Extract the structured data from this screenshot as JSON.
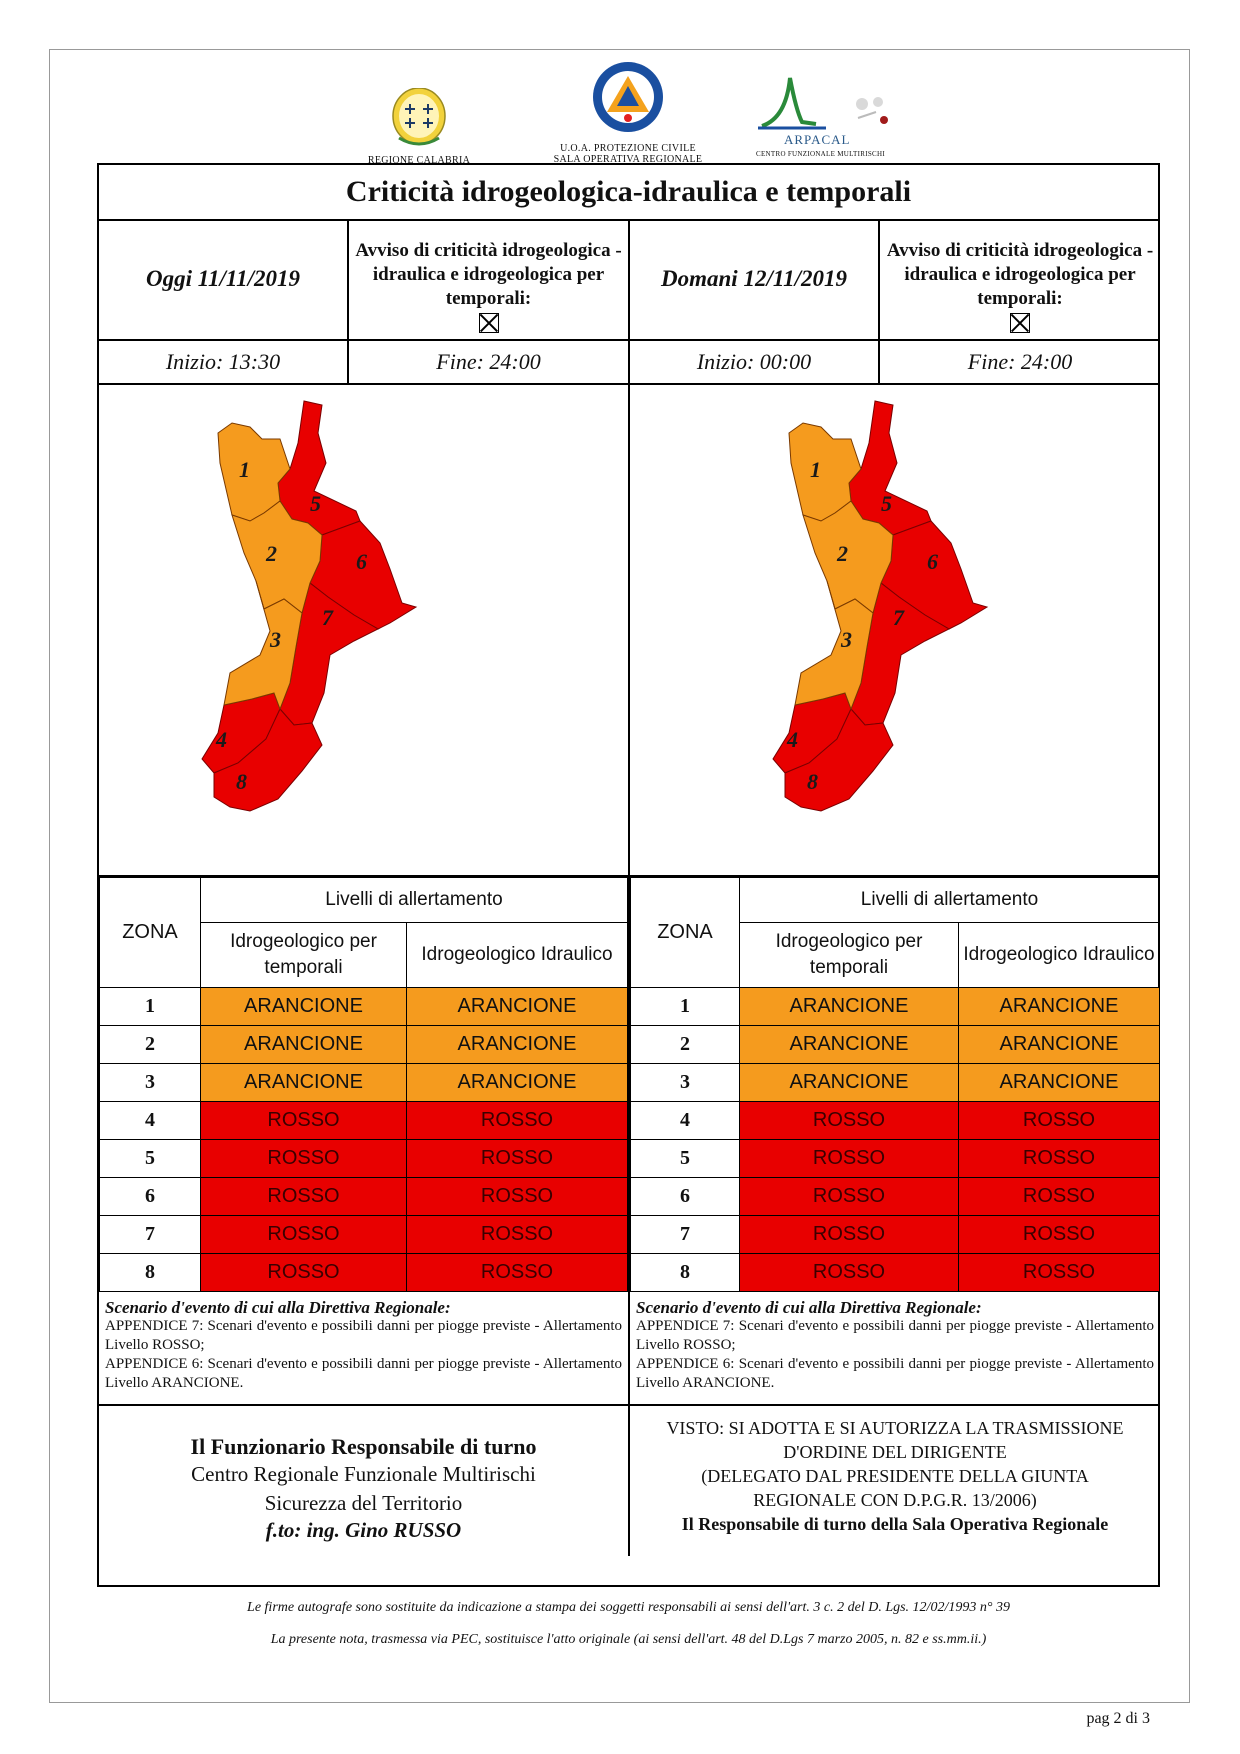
{
  "logos": {
    "calabria_caption": "REGIONE CALABRIA",
    "pc_line1": "U.O.A. PROTEZIONE CIVILE",
    "pc_line2": "SALA OPERATIVA REGIONALE",
    "pc_badge": "PROTEZIONE CIVILE",
    "arpacal_name": "ARPACAL",
    "arpacal_sub": "CENTRO FUNZIONALE MULTIRISCHI"
  },
  "title": "Criticità idrogeologica-idraulica e temporali",
  "today": {
    "day": "Oggi 11/11/2019",
    "avviso": "Avviso di criticità idrogeologica - idraulica e idrogeologica per temporali:",
    "inizio": "Inizio: 13:30",
    "fine": "Fine: 24:00"
  },
  "tomorrow": {
    "day": "Domani 12/11/2019",
    "avviso": "Avviso di criticità idrogeologica - idraulica e idrogeologica per temporali:",
    "inizio": "Inizio: 00:00",
    "fine": "Fine: 24:00"
  },
  "map": {
    "zone_labels": [
      "1",
      "2",
      "3",
      "4",
      "5",
      "6",
      "7",
      "8"
    ],
    "colors": {
      "arancione": "#f59b1e",
      "rosso": "#e80000"
    }
  },
  "table": {
    "zona_header": "ZONA",
    "livelli_header": "Livelli di allertamento",
    "col1": "Idrogeologico per temporali",
    "col2": "Idrogeologico Idraulico",
    "rows_today": [
      {
        "zona": "1",
        "temporali": "ARANCIONE",
        "idraulico": "ARANCIONE"
      },
      {
        "zona": "2",
        "temporali": "ARANCIONE",
        "idraulico": "ARANCIONE"
      },
      {
        "zona": "3",
        "temporali": "ARANCIONE",
        "idraulico": "ARANCIONE"
      },
      {
        "zona": "4",
        "temporali": "ROSSO",
        "idraulico": "ROSSO"
      },
      {
        "zona": "5",
        "temporali": "ROSSO",
        "idraulico": "ROSSO"
      },
      {
        "zona": "6",
        "temporali": "ROSSO",
        "idraulico": "ROSSO"
      },
      {
        "zona": "7",
        "temporali": "ROSSO",
        "idraulico": "ROSSO"
      },
      {
        "zona": "8",
        "temporali": "ROSSO",
        "idraulico": "ROSSO"
      }
    ],
    "rows_tomorrow": [
      {
        "zona": "1",
        "temporali": "ARANCIONE",
        "idraulico": "ARANCIONE"
      },
      {
        "zona": "2",
        "temporali": "ARANCIONE",
        "idraulico": "ARANCIONE"
      },
      {
        "zona": "3",
        "temporali": "ARANCIONE",
        "idraulico": "ARANCIONE"
      },
      {
        "zona": "4",
        "temporali": "ROSSO",
        "idraulico": "ROSSO"
      },
      {
        "zona": "5",
        "temporali": "ROSSO",
        "idraulico": "ROSSO"
      },
      {
        "zona": "6",
        "temporali": "ROSSO",
        "idraulico": "ROSSO"
      },
      {
        "zona": "7",
        "temporali": "ROSSO",
        "idraulico": "ROSSO"
      },
      {
        "zona": "8",
        "temporali": "ROSSO",
        "idraulico": "ROSSO"
      }
    ]
  },
  "scenario": {
    "title": "Scenario d'evento di cui alla Direttiva Regionale:",
    "text1": "APPENDICE 7: Scenari d'evento e possibili danni per piogge previste - Allertamento Livello ROSSO;",
    "text2": "APPENDICE 6: Scenari d'evento e possibili danni per piogge previste - Allertamento Livello ARANCIONE."
  },
  "footer_left": {
    "line1": "Il Funzionario Responsabile di turno",
    "line2": "Centro Regionale Funzionale Multirischi",
    "line3": "Sicurezza del Territorio",
    "line4": "f.to: ing. Gino RUSSO"
  },
  "footer_right": {
    "line1": "VISTO: SI ADOTTA E SI AUTORIZZA LA TRASMISSIONE",
    "line2": "D'ORDINE DEL DIRIGENTE",
    "line3": "(DELEGATO DAL PRESIDENTE DELLA GIUNTA",
    "line4": "REGIONALE CON D.P.G.R. 13/2006)",
    "line5": "Il Responsabile di turno della Sala Operativa Regionale"
  },
  "notes": {
    "note1": "Le firme autografe sono sostituite da indicazione a stampa dei soggetti responsabili ai sensi dell'art. 3 c. 2 del D. Lgs. 12/02/1993 n° 39",
    "note2": "La presente nota, trasmessa via PEC, sostituisce l'atto originale (ai sensi dell'art. 48 del D.Lgs 7 marzo 2005, n. 82 e ss.mm.ii.)"
  },
  "page": {
    "label": "pag 2 di 3"
  }
}
